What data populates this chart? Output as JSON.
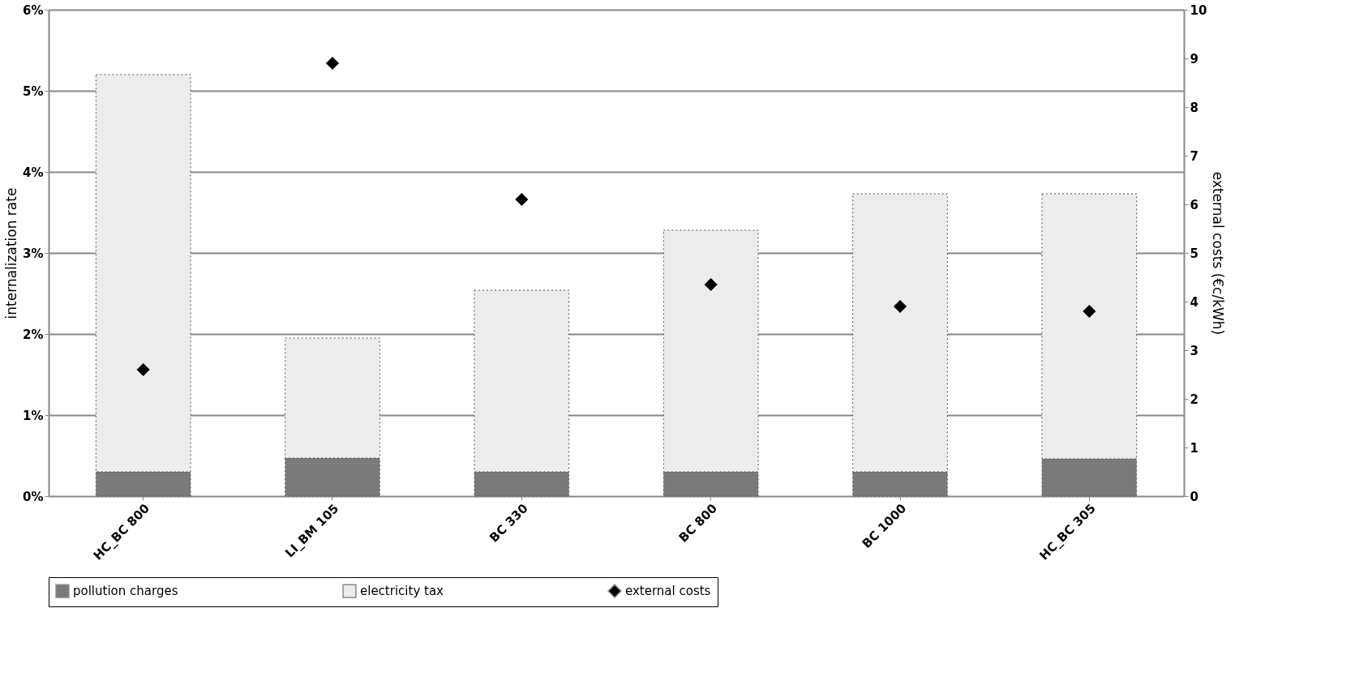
{
  "chart_data": {
    "type": "bar",
    "stacked": true,
    "xlabel": null,
    "ylabel": "internalization rate",
    "y2label": "external costs (€c/kWh)",
    "categories": [
      "HC_BC 800",
      "LI_BM 105",
      "BC 330",
      "BC 800",
      "BC 1000",
      "HC_BC 305"
    ],
    "series": [
      {
        "name": "pollution charges",
        "color": "#7a7a7a",
        "values": [
          0.3,
          0.47,
          0.3,
          0.3,
          0.3,
          0.46
        ]
      },
      {
        "name": "electricity tax",
        "color": "#ececec",
        "values": [
          4.9,
          1.48,
          2.24,
          2.98,
          3.43,
          3.27
        ]
      },
      {
        "name": "external costs",
        "type": "scatter",
        "axis": "y2",
        "marker": "diamond",
        "color": "#000000",
        "values": [
          2.6,
          8.9,
          6.1,
          4.35,
          3.9,
          3.8
        ]
      }
    ],
    "ylim": [
      0,
      6
    ],
    "yticks": [
      {
        "value": 0,
        "label": "0%"
      },
      {
        "value": 1,
        "label": "1%"
      },
      {
        "value": 2,
        "label": "2%"
      },
      {
        "value": 3,
        "label": "3%"
      },
      {
        "value": 4,
        "label": "4%"
      },
      {
        "value": 5,
        "label": "5%"
      },
      {
        "value": 6,
        "label": "6%"
      }
    ],
    "y2lim": [
      0,
      10
    ],
    "y2ticks": [
      0,
      1,
      2,
      3,
      4,
      5,
      6,
      7,
      8,
      9,
      10
    ],
    "grid": "y",
    "legend": "bottom"
  }
}
